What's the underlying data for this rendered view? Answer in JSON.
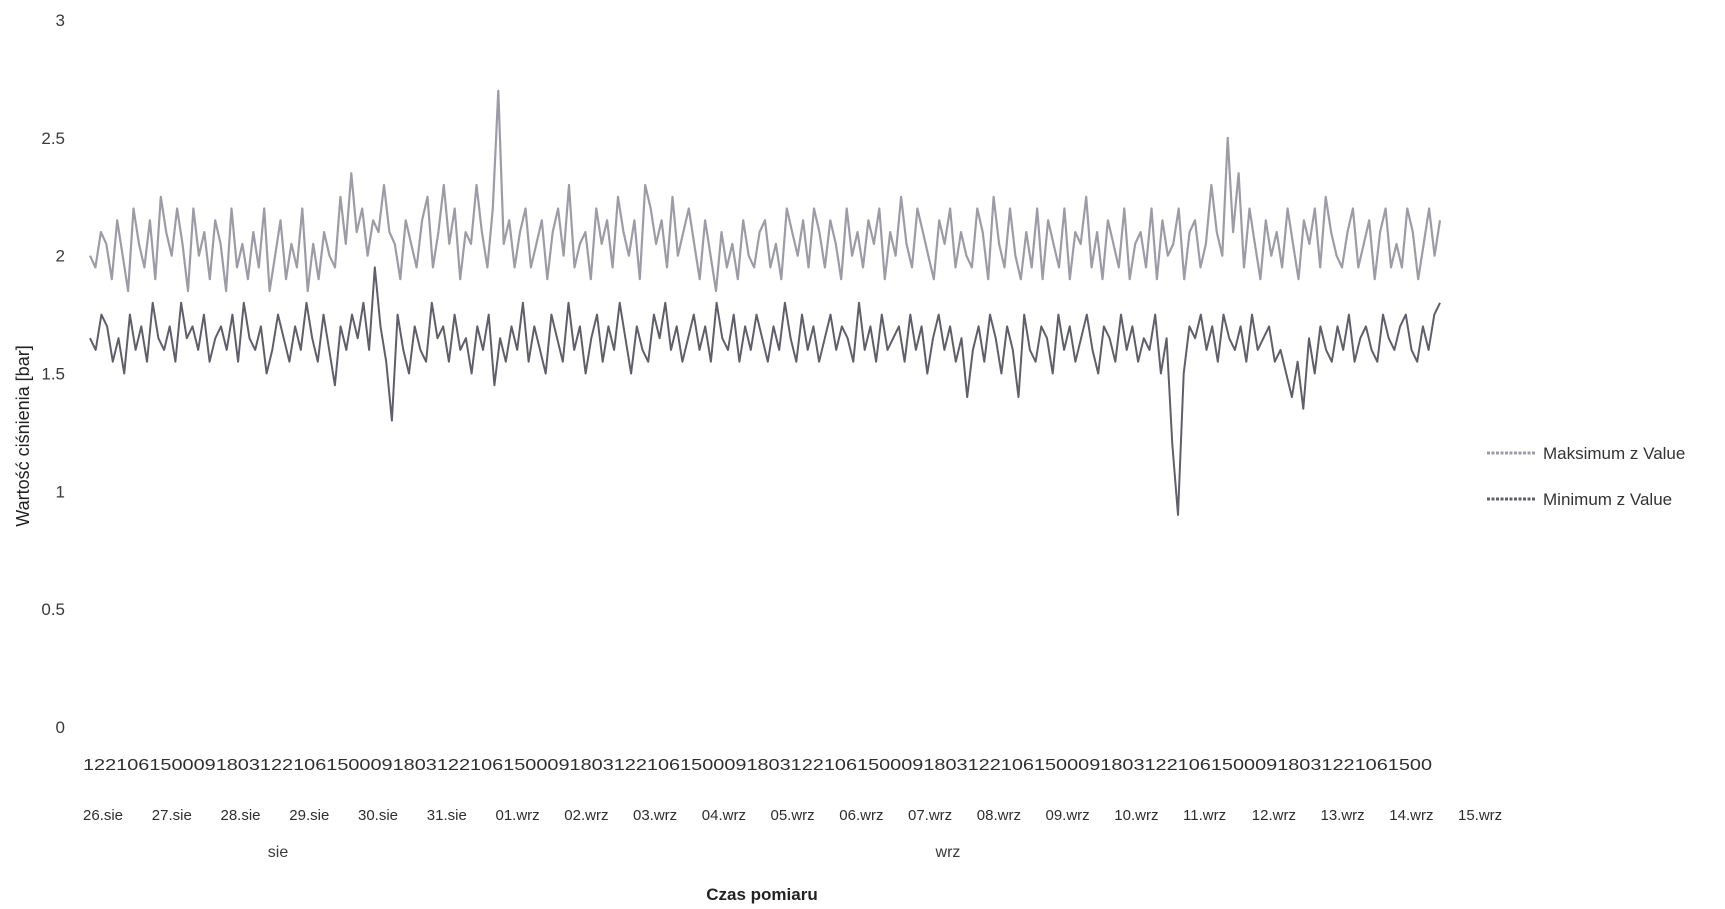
{
  "chart_data": {
    "type": "line",
    "title": "",
    "xlabel": "Czas pomiaru",
    "ylabel": "Wartość ciśnienia [bar]",
    "ylim": [
      0,
      3
    ],
    "yticks": [
      "0",
      "0.5",
      "1",
      "1.5",
      "2",
      "2.5",
      "3"
    ],
    "grid": false,
    "legend_position": "right",
    "time_ticks_text": "12210615000918031221061500091803122106150009180312210615000918031221061500091803122106150009180312210615000918031221061500",
    "day_labels": [
      "26.sie",
      "27.sie",
      "28.sie",
      "29.sie",
      "30.sie",
      "31.sie",
      "01.wrz",
      "02.wrz",
      "03.wrz",
      "04.wrz",
      "05.wrz",
      "06.wrz",
      "07.wrz",
      "08.wrz",
      "09.wrz",
      "10.wrz",
      "11.wrz",
      "12.wrz",
      "13.wrz",
      "14.wrz",
      "15.wrz"
    ],
    "month_groups": [
      "sie",
      "wrz"
    ],
    "series": [
      {
        "name": "Maksimum z Value",
        "color": "#9c9ca6",
        "values": [
          2.0,
          1.95,
          2.1,
          2.05,
          1.9,
          2.15,
          2.0,
          1.85,
          2.2,
          2.05,
          1.95,
          2.15,
          1.9,
          2.25,
          2.1,
          2.0,
          2.2,
          2.05,
          1.85,
          2.2,
          2.0,
          2.1,
          1.9,
          2.15,
          2.05,
          1.85,
          2.2,
          1.95,
          2.05,
          1.9,
          2.1,
          1.95,
          2.2,
          1.85,
          2.0,
          2.15,
          1.9,
          2.05,
          1.95,
          2.2,
          1.85,
          2.05,
          1.9,
          2.1,
          2.0,
          1.95,
          2.25,
          2.05,
          2.35,
          2.1,
          2.2,
          2.0,
          2.15,
          2.1,
          2.3,
          2.1,
          2.05,
          1.9,
          2.15,
          2.05,
          1.95,
          2.15,
          2.25,
          1.95,
          2.1,
          2.3,
          2.05,
          2.2,
          1.9,
          2.1,
          2.05,
          2.3,
          2.1,
          1.95,
          2.2,
          2.7,
          2.05,
          2.15,
          1.95,
          2.1,
          2.2,
          1.95,
          2.05,
          2.15,
          1.9,
          2.1,
          2.2,
          2.0,
          2.3,
          1.95,
          2.05,
          2.1,
          1.9,
          2.2,
          2.05,
          2.15,
          1.95,
          2.25,
          2.1,
          2.0,
          2.15,
          1.9,
          2.3,
          2.2,
          2.05,
          2.15,
          1.95,
          2.25,
          2.0,
          2.1,
          2.2,
          2.05,
          1.9,
          2.15,
          2.0,
          1.85,
          2.1,
          1.95,
          2.05,
          1.9,
          2.15,
          2.0,
          1.95,
          2.1,
          2.15,
          1.95,
          2.05,
          1.9,
          2.2,
          2.1,
          2.0,
          2.15,
          1.95,
          2.2,
          2.1,
          1.95,
          2.15,
          2.05,
          1.9,
          2.2,
          2.0,
          2.1,
          1.95,
          2.15,
          2.05,
          2.2,
          1.9,
          2.1,
          2.0,
          2.25,
          2.05,
          1.95,
          2.2,
          2.1,
          2.0,
          1.9,
          2.15,
          2.05,
          2.2,
          1.95,
          2.1,
          2.0,
          1.95,
          2.2,
          2.1,
          1.9,
          2.25,
          2.05,
          1.95,
          2.2,
          2.0,
          1.9,
          2.1,
          1.95,
          2.2,
          1.9,
          2.15,
          2.05,
          1.95,
          2.2,
          1.9,
          2.1,
          2.05,
          2.25,
          1.95,
          2.1,
          1.9,
          2.15,
          2.05,
          1.95,
          2.2,
          1.9,
          2.05,
          2.1,
          1.95,
          2.2,
          1.9,
          2.15,
          2.0,
          2.05,
          2.2,
          1.9,
          2.1,
          2.15,
          1.95,
          2.05,
          2.3,
          2.1,
          2.0,
          2.5,
          2.1,
          2.35,
          1.95,
          2.2,
          2.05,
          1.9,
          2.15,
          2.0,
          2.1,
          1.95,
          2.2,
          2.05,
          1.9,
          2.15,
          2.05,
          2.2,
          1.95,
          2.25,
          2.1,
          2.0,
          1.95,
          2.1,
          2.2,
          1.95,
          2.05,
          2.15,
          1.9,
          2.1,
          2.2,
          1.95,
          2.05,
          1.95,
          2.2,
          2.1,
          1.9,
          2.05,
          2.2,
          2.0,
          2.15
        ]
      },
      {
        "name": "Minimum z Value",
        "color": "#5f5f6a",
        "values": [
          1.65,
          1.6,
          1.75,
          1.7,
          1.55,
          1.65,
          1.5,
          1.75,
          1.6,
          1.7,
          1.55,
          1.8,
          1.65,
          1.6,
          1.7,
          1.55,
          1.8,
          1.65,
          1.7,
          1.6,
          1.75,
          1.55,
          1.65,
          1.7,
          1.6,
          1.75,
          1.55,
          1.8,
          1.65,
          1.6,
          1.7,
          1.5,
          1.6,
          1.75,
          1.65,
          1.55,
          1.7,
          1.6,
          1.8,
          1.65,
          1.55,
          1.75,
          1.6,
          1.45,
          1.7,
          1.6,
          1.75,
          1.65,
          1.8,
          1.6,
          1.95,
          1.7,
          1.55,
          1.3,
          1.75,
          1.6,
          1.5,
          1.7,
          1.6,
          1.55,
          1.8,
          1.65,
          1.7,
          1.55,
          1.75,
          1.6,
          1.65,
          1.5,
          1.7,
          1.6,
          1.75,
          1.45,
          1.65,
          1.55,
          1.7,
          1.6,
          1.8,
          1.55,
          1.7,
          1.6,
          1.5,
          1.75,
          1.65,
          1.55,
          1.8,
          1.6,
          1.7,
          1.5,
          1.65,
          1.75,
          1.55,
          1.7,
          1.6,
          1.8,
          1.65,
          1.5,
          1.7,
          1.6,
          1.55,
          1.75,
          1.65,
          1.8,
          1.6,
          1.7,
          1.55,
          1.65,
          1.75,
          1.6,
          1.7,
          1.55,
          1.8,
          1.65,
          1.6,
          1.75,
          1.55,
          1.7,
          1.6,
          1.75,
          1.65,
          1.55,
          1.7,
          1.6,
          1.8,
          1.65,
          1.55,
          1.75,
          1.6,
          1.7,
          1.55,
          1.65,
          1.75,
          1.6,
          1.7,
          1.65,
          1.55,
          1.8,
          1.6,
          1.7,
          1.55,
          1.75,
          1.6,
          1.65,
          1.7,
          1.55,
          1.75,
          1.6,
          1.7,
          1.5,
          1.65,
          1.75,
          1.6,
          1.7,
          1.55,
          1.65,
          1.4,
          1.6,
          1.7,
          1.55,
          1.75,
          1.65,
          1.5,
          1.7,
          1.6,
          1.4,
          1.75,
          1.6,
          1.55,
          1.7,
          1.65,
          1.5,
          1.75,
          1.6,
          1.7,
          1.55,
          1.65,
          1.75,
          1.6,
          1.5,
          1.7,
          1.65,
          1.55,
          1.75,
          1.6,
          1.7,
          1.55,
          1.65,
          1.6,
          1.75,
          1.5,
          1.65,
          1.2,
          0.9,
          1.5,
          1.7,
          1.65,
          1.75,
          1.6,
          1.7,
          1.55,
          1.75,
          1.65,
          1.6,
          1.7,
          1.55,
          1.75,
          1.6,
          1.65,
          1.7,
          1.55,
          1.6,
          1.5,
          1.4,
          1.55,
          1.35,
          1.65,
          1.5,
          1.7,
          1.6,
          1.55,
          1.7,
          1.6,
          1.75,
          1.55,
          1.65,
          1.7,
          1.6,
          1.55,
          1.75,
          1.65,
          1.6,
          1.7,
          1.75,
          1.6,
          1.55,
          1.7,
          1.6,
          1.75,
          1.8
        ]
      }
    ]
  }
}
